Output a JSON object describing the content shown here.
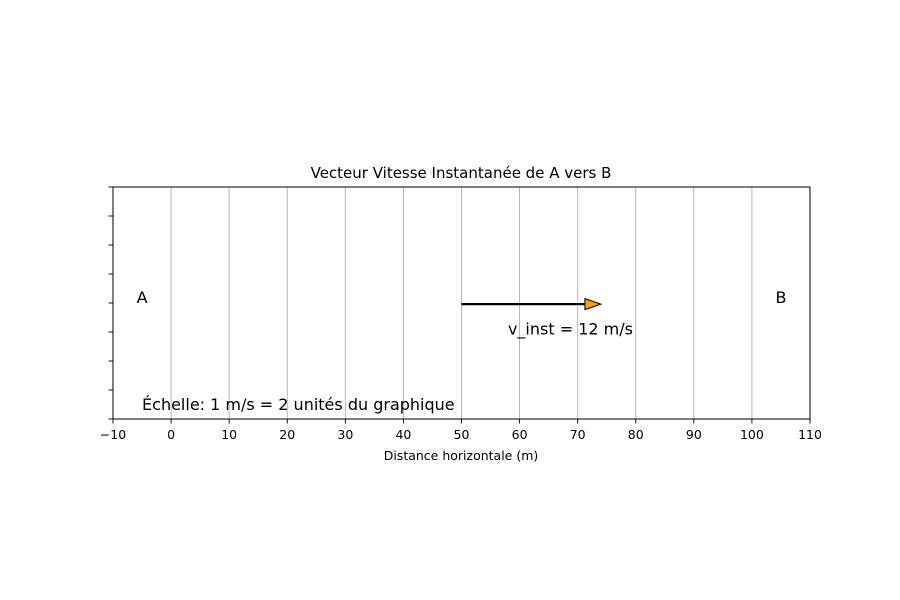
{
  "chart_data": {
    "type": "vector-plot",
    "title": "Vecteur Vitesse Instantanée de A vers B",
    "xlabel": "Distance horizontale (m)",
    "ylabel": "",
    "xlim": [
      -10,
      110
    ],
    "ylim": [
      -1,
      1
    ],
    "xticks": [
      -10,
      0,
      10,
      20,
      30,
      40,
      50,
      60,
      70,
      80,
      90,
      100,
      110
    ],
    "xtick_labels": [
      "−10",
      "0",
      "10",
      "20",
      "30",
      "40",
      "50",
      "60",
      "70",
      "80",
      "90",
      "100",
      "110"
    ],
    "yticks": [
      -1,
      -0.75,
      -0.5,
      -0.25,
      0,
      0.25,
      0.5,
      0.75,
      1
    ],
    "grid": "x-only",
    "points": [
      {
        "label": "A",
        "x": -5,
        "y": 0.05
      },
      {
        "label": "B",
        "x": 105,
        "y": 0.05
      }
    ],
    "vector": {
      "x_start": 50,
      "y": -0.01,
      "x_end": 74,
      "label": "v_inst = 12 m/s",
      "label_x": 58,
      "label_y": -0.22,
      "color": "#000000",
      "head_color": "#ff9f00"
    },
    "scale_note": {
      "text": "Échelle: 1 m/s = 2 unités du graphique",
      "x": -5,
      "y": -0.87
    }
  }
}
